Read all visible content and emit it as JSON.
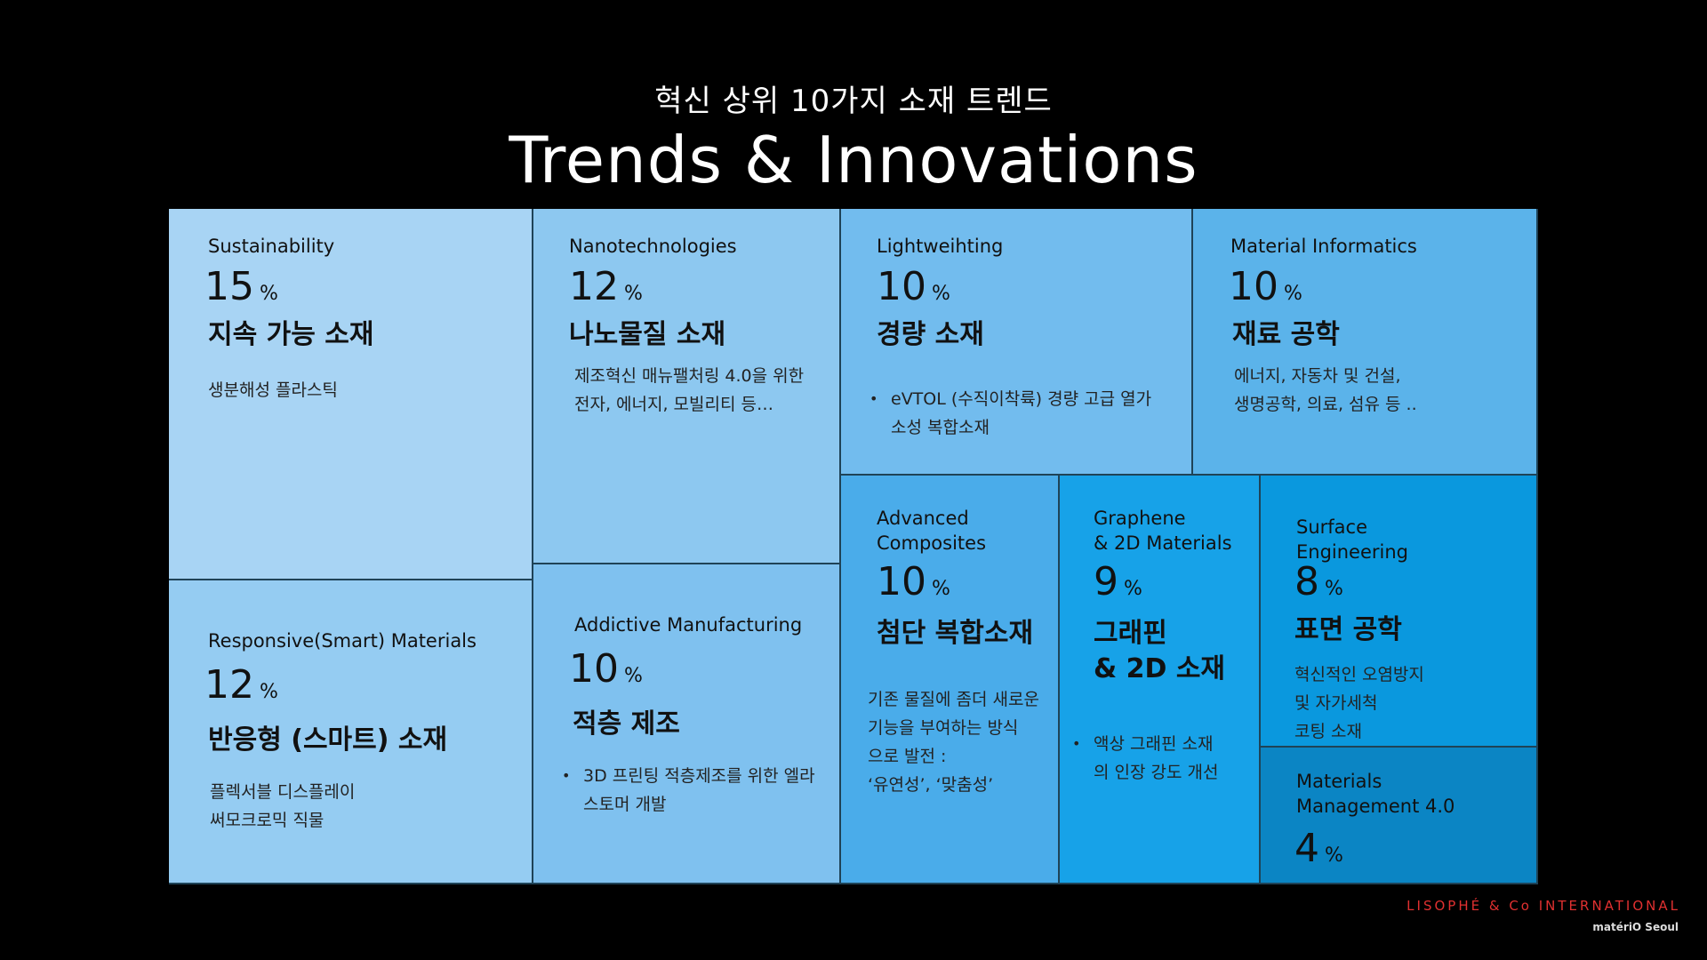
{
  "header": {
    "subtitle": "혁신 상위 10가지 소재 트렌드",
    "title": "Trends & Innovations"
  },
  "chart_data": {
    "type": "treemap",
    "unit": "%",
    "items": [
      {
        "category": "Sustainability",
        "value": 15,
        "korean": "지속 가능 소재",
        "description": "생분해성 플라스틱",
        "bullet": false,
        "color": "#a8d4f4"
      },
      {
        "category": "Responsive(Smart) Materials",
        "value": 12,
        "korean": "반응형 (스마트) 소재",
        "description": "플렉서블 디스플레이\n써모크로믹 직물",
        "bullet": false,
        "color": "#95ccf2"
      },
      {
        "category": "Nanotechnologies",
        "value": 12,
        "korean": "나노물질 소재",
        "description": "제조혁신 매뉴팰처링 4.0을 위한\n전자, 에너지, 모빌리티 등…",
        "bullet": false,
        "color": "#8dc8f0"
      },
      {
        "category": "Addictive Manufacturing",
        "value": 10,
        "korean": "적층 제조",
        "description": "3D 프린팅 적층제조를 위한 엘라\n스토머 개발",
        "bullet": true,
        "color": "#7fc1ef"
      },
      {
        "category": "Lightweihting",
        "value": 10,
        "korean": "경량 소재",
        "description": "eVTOL (수직이착륙) 경량 고급 열가\n소성 복합소재",
        "bullet": true,
        "color": "#72bcee"
      },
      {
        "category": "Material Informatics",
        "value": 10,
        "korean": "재료 공학",
        "description": "에너지, 자동차 및 건설,\n생명공학, 의료, 섬유 등 ..",
        "bullet": false,
        "color": "#5bb3ea"
      },
      {
        "category": "Advanced\nComposites",
        "value": 10,
        "korean": "첨단 복합소재",
        "description": "기존 물질에 좀더 새로운\n기능을 부여하는 방식\n으로 발전 :\n‘유연성’, ‘맞춤성’",
        "bullet": false,
        "color": "#4aacea"
      },
      {
        "category": "Graphene\n& 2D Materials",
        "value": 9,
        "korean": "그래핀\n& 2D 소재",
        "description": "액상 그래핀 소재\n의 인장 강도 개선",
        "bullet": true,
        "color": "#17a2e8"
      },
      {
        "category": "Surface\nEngineering",
        "value": 8,
        "korean": "표면 공학",
        "description": "혁신적인 오염방지\n및 자가세척\n코팅 소재",
        "bullet": false,
        "color": "#0a98de"
      },
      {
        "category": "Materials\nManagement 4.0",
        "value": 4,
        "korean": "",
        "description": "",
        "bullet": false,
        "color": "#0b85c4"
      }
    ]
  },
  "footer": {
    "brand": "LISOPHÉ & Co INTERNATIONAL",
    "sub": "matériO Seoul"
  }
}
